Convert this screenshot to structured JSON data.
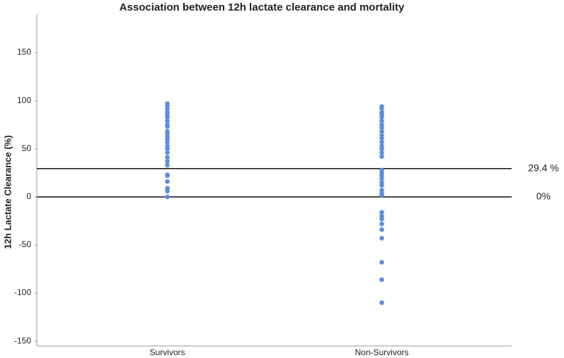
{
  "chart_data": {
    "type": "strip",
    "title": "Association between 12h lactate clearance and mortality",
    "y_label": "12h Lactate Clearance (%)",
    "categories": [
      "Survivors",
      "Non-Survivors"
    ],
    "values": [
      [
        97,
        95,
        92,
        88,
        88,
        85,
        83,
        79,
        75,
        73,
        68,
        66,
        63,
        60,
        57,
        53,
        50,
        46,
        41,
        37,
        33,
        23,
        22,
        16,
        9,
        6,
        0
      ],
      [
        94,
        92,
        88,
        85,
        83,
        79,
        75,
        72,
        68,
        64,
        61,
        57,
        53,
        50,
        46,
        42,
        28,
        25,
        22,
        19,
        15,
        12,
        7,
        4,
        2,
        -16,
        -20,
        -23,
        -28,
        -34,
        -43,
        -68,
        -86,
        -110
      ]
    ],
    "color": "#5b8fdb",
    "ylim": [
      -155,
      190
    ],
    "yticks": [
      -150,
      -100,
      -50,
      0,
      50,
      100,
      150
    ],
    "grid": false,
    "reference_lines": [
      {
        "value": 29.4,
        "label": "29.4 %"
      },
      {
        "value": 0,
        "label": "0%"
      }
    ]
  }
}
